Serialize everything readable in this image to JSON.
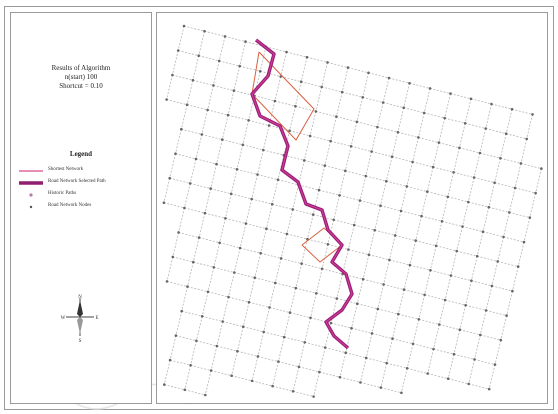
{
  "title": {
    "line1": "Results of Algorithm",
    "line2": "n(start) 100",
    "line3": "Shortcut = 0.10"
  },
  "legend": {
    "heading": "Legend",
    "items": [
      {
        "label": "Shortest Network",
        "color": "#d84a8a",
        "style": "thin-line"
      },
      {
        "label": "Road Network Selected Path",
        "color": "#8e1f6e",
        "style": "thick-line"
      },
      {
        "label": "Historic Paths",
        "color": "#b57aa8",
        "style": "dot"
      },
      {
        "label": "Road Network Nodes",
        "color": "#555555",
        "style": "small-dot"
      }
    ]
  },
  "compass": {
    "n": "N",
    "s": "S",
    "e": "E",
    "w": "W"
  },
  "colors": {
    "grid": "#b5b5b5",
    "node": "#666666",
    "path_main": "#9b1f7a",
    "path_highlight": "#e0479a",
    "route_alt": "#d9603f"
  }
}
